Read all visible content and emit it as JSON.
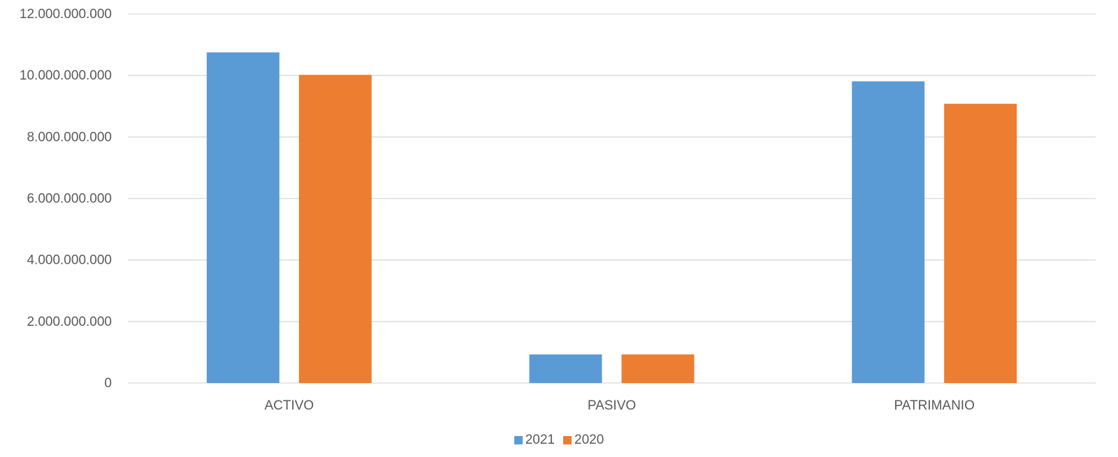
{
  "chart_data": {
    "type": "bar",
    "title": "",
    "xlabel": "",
    "ylabel": "",
    "categories": [
      "ACTIVO",
      "PASIVO",
      "PATRIMANIO"
    ],
    "series": [
      {
        "name": "2021",
        "color": "#5B9BD5",
        "values": [
          10750000000,
          930000000,
          9810000000
        ]
      },
      {
        "name": "2020",
        "color": "#ED7D31",
        "values": [
          10020000000,
          930000000,
          9080000000
        ]
      }
    ],
    "ylim": [
      0,
      12000000000
    ],
    "yticks": [
      {
        "value": 0,
        "label": "0"
      },
      {
        "value": 2000000000,
        "label": "2.000.000.000"
      },
      {
        "value": 4000000000,
        "label": "4.000.000.000"
      },
      {
        "value": 6000000000,
        "label": "6.000.000.000"
      },
      {
        "value": 8000000000,
        "label": "8.000.000.000"
      },
      {
        "value": 10000000000,
        "label": "10.000.000.000"
      },
      {
        "value": 12000000000,
        "label": "12.000.000.000"
      }
    ],
    "grid": true,
    "legend_position": "bottom"
  }
}
